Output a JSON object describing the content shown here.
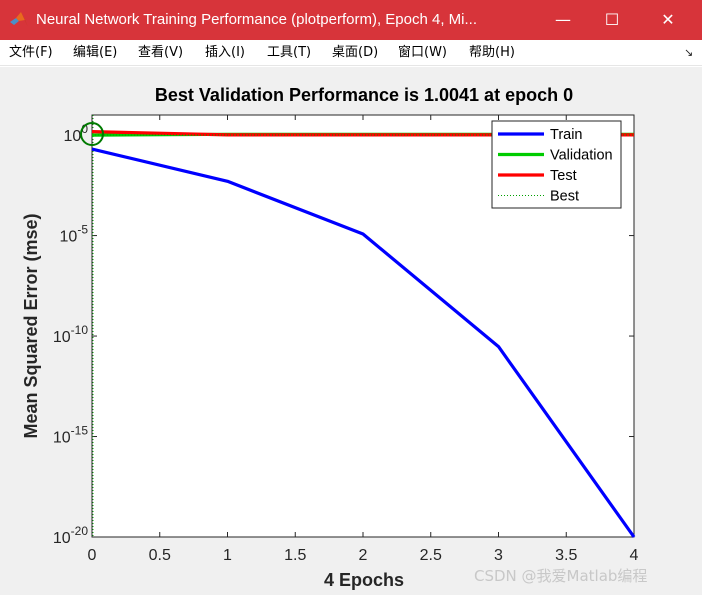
{
  "window": {
    "title": "Neural Network Training Performance (plotperform), Epoch 4, Mi...",
    "minimize_glyph": "—",
    "maximize_glyph": "☐",
    "close_glyph": "✕",
    "icon": "matlab-logo-icon"
  },
  "menu": [
    "文件(F)",
    "编辑(E)",
    "查看(V)",
    "插入(I)",
    "工具(T)",
    "桌面(D)",
    "窗口(W)",
    "帮助(H)"
  ],
  "menu_overflow_glyph": "↘",
  "watermark": "CSDN @我爱Matlab编程",
  "colors": {
    "titlebar": "#d7343a",
    "train": "#0000ff",
    "validation": "#00cc00",
    "test": "#ff0000",
    "best": "#00a000",
    "best_marker": "#007a00"
  },
  "chart_data": {
    "type": "line",
    "title": "Best Validation Performance is 1.0041 at epoch 0",
    "xlabel": "4 Epochs",
    "ylabel": "Mean Squared Error  (mse)",
    "y_scale": "log",
    "xlim": [
      0,
      4
    ],
    "ylim": [
      1e-20,
      10
    ],
    "x_ticks": [
      0,
      0.5,
      1,
      1.5,
      2,
      2.5,
      3,
      3.5,
      4
    ],
    "x_tick_labels": [
      "0",
      "0.5",
      "1",
      "1.5",
      "2",
      "2.5",
      "3",
      "3.5",
      "4"
    ],
    "y_ticks": [
      {
        "value": 1,
        "base": "10",
        "exp": "0"
      },
      {
        "value": 1e-05,
        "base": "10",
        "exp": "-5"
      },
      {
        "value": 1e-10,
        "base": "10",
        "exp": "-10"
      },
      {
        "value": 1e-15,
        "base": "10",
        "exp": "-15"
      },
      {
        "value": 1e-20,
        "base": "10",
        "exp": "-20"
      }
    ],
    "grid": false,
    "legend_position": "top-right",
    "x": [
      0,
      1,
      2,
      3,
      4
    ],
    "series": [
      {
        "name": "Train",
        "key": "train",
        "values": [
          0.2,
          0.005,
          1.2e-05,
          3e-11,
          1e-20
        ]
      },
      {
        "name": "Validation",
        "key": "validation",
        "values": [
          1.0041,
          1.09,
          1.1,
          1.1,
          1.1
        ]
      },
      {
        "name": "Test",
        "key": "test",
        "values": [
          1.5,
          1.02,
          1.02,
          1.02,
          1.02
        ]
      }
    ],
    "best": {
      "name": "Best",
      "epoch": 0,
      "value": 1.0041
    }
  }
}
